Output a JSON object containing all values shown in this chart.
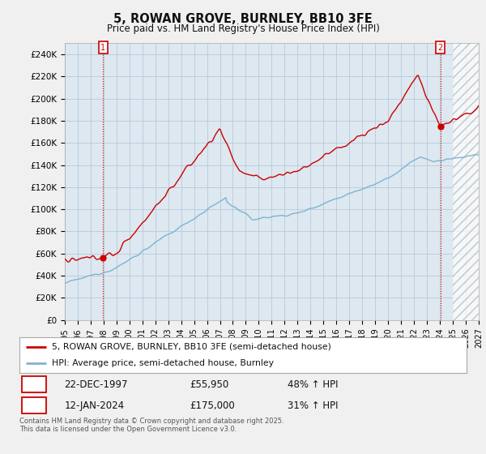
{
  "title": "5, ROWAN GROVE, BURNLEY, BB10 3FE",
  "subtitle": "Price paid vs. HM Land Registry's House Price Index (HPI)",
  "ylim": [
    0,
    250000
  ],
  "yticks": [
    0,
    20000,
    40000,
    60000,
    80000,
    100000,
    120000,
    140000,
    160000,
    180000,
    200000,
    220000,
    240000
  ],
  "ytick_labels": [
    "£0",
    "£20K",
    "£40K",
    "£60K",
    "£80K",
    "£100K",
    "£120K",
    "£140K",
    "£160K",
    "£180K",
    "£200K",
    "£220K",
    "£240K"
  ],
  "hpi_color": "#7fb3d3",
  "price_color": "#cc0000",
  "point1_year": 1997.96,
  "point1_price": 55950,
  "point2_year": 2024.04,
  "point2_price": 175000,
  "legend_label1": "5, ROWAN GROVE, BURNLEY, BB10 3FE (semi-detached house)",
  "legend_label2": "HPI: Average price, semi-detached house, Burnley",
  "point1_date": "22-DEC-1997",
  "point2_date": "12-JAN-2024",
  "point1_hpi_pct": "48% ↑ HPI",
  "point2_hpi_pct": "31% ↑ HPI",
  "footer": "Contains HM Land Registry data © Crown copyright and database right 2025.\nThis data is licensed under the Open Government Licence v3.0.",
  "background_color": "#f0f0f0",
  "plot_bg_color": "#dde8f0",
  "grid_color": "#b0c4d8",
  "xmin": 1995.0,
  "xmax": 2027.0,
  "future_start": 2025.0
}
